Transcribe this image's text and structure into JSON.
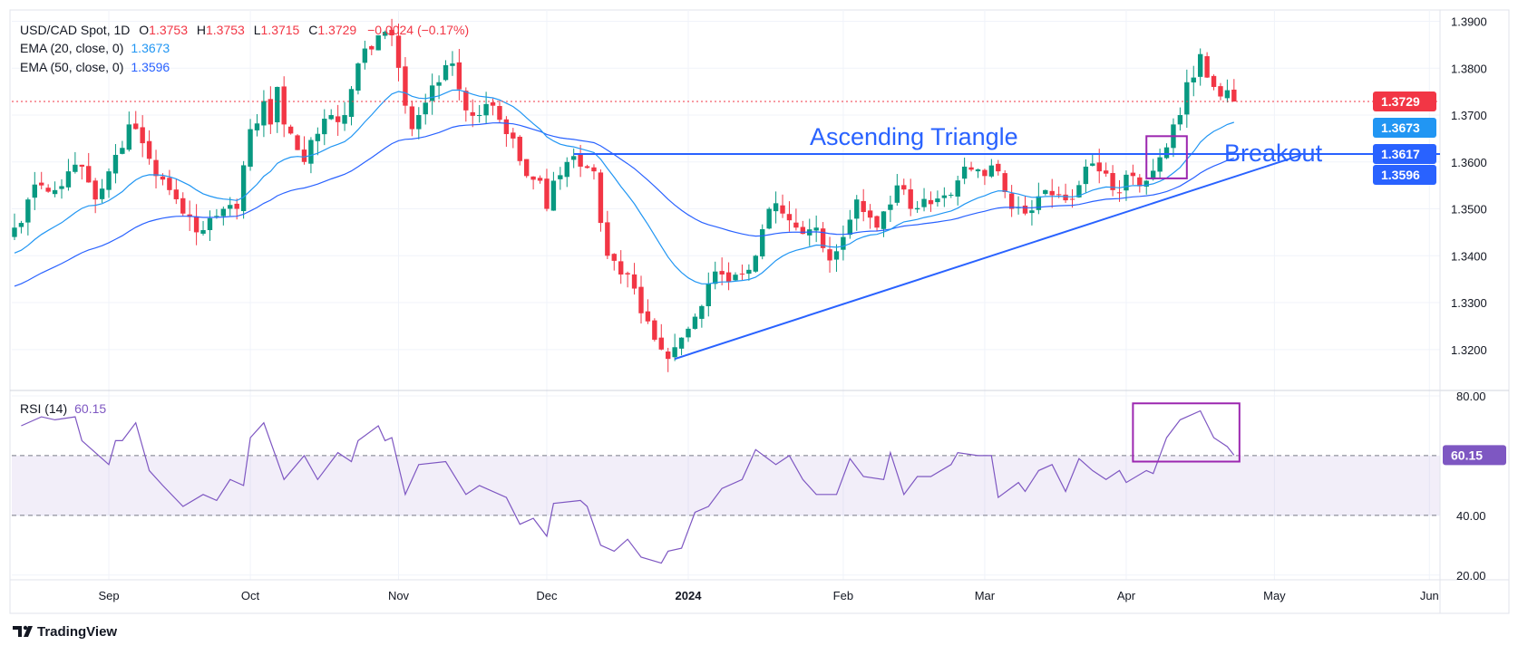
{
  "header": {
    "symbol": "USD/CAD Spot, 1D",
    "open_label": "O",
    "open": "1.3753",
    "high_label": "H",
    "high": "1.3753",
    "low_label": "L",
    "low": "1.3715",
    "close_label": "C",
    "close": "1.3729",
    "change": "−0.0024 (−0.17%)",
    "ema20_label": "EMA (20, close, 0)",
    "ema20_value": "1.3673",
    "ema50_label": "EMA (50, close, 0)",
    "ema50_value": "1.3596",
    "rsi_label": "RSI (14)",
    "rsi_value": "60.15"
  },
  "annotations": {
    "pattern": "Ascending Triangle",
    "breakout": "Breakout"
  },
  "footer": {
    "brand": "TradingView"
  },
  "colors": {
    "up": "#089981",
    "down": "#f23645",
    "ema20": "#2196f3",
    "ema50": "#2962ff",
    "annotation": "#2962ff",
    "rsi": "#7e57c2",
    "box": "#9c27b0",
    "last": "#f23645"
  },
  "chart_data": [
    {
      "type": "candlestick",
      "title": "USD/CAD Spot, 1D",
      "ylim": [
        1.315,
        1.395
      ],
      "y_ticks": [
        "1.3900",
        "1.3800",
        "1.3700",
        "1.3600",
        "1.3500",
        "1.3400",
        "1.3300",
        "1.3200"
      ],
      "x_ticks": [
        {
          "label": "Sep",
          "date": "2023-09-01"
        },
        {
          "label": "Oct",
          "date": "2023-10-02"
        },
        {
          "label": "Nov",
          "date": "2023-11-01"
        },
        {
          "label": "Dec",
          "date": "2023-12-01"
        },
        {
          "label": "2024",
          "date": "2024-01-01"
        },
        {
          "label": "Feb",
          "date": "2024-02-01"
        },
        {
          "label": "Mar",
          "date": "2024-03-01"
        },
        {
          "label": "Apr",
          "date": "2024-04-01"
        },
        {
          "label": "May",
          "date": "2024-05-01"
        },
        {
          "label": "Jun",
          "date": "2024-06-03"
        }
      ],
      "date_range": [
        "2023-08-14",
        "2024-06-05"
      ],
      "close_keypoints": [
        [
          "2023-08-14",
          1.346
        ],
        [
          "2023-08-16",
          1.352
        ],
        [
          "2023-08-18",
          1.355
        ],
        [
          "2023-08-22",
          1.354
        ],
        [
          "2023-08-24",
          1.358
        ],
        [
          "2023-08-28",
          1.359
        ],
        [
          "2023-08-30",
          1.352
        ],
        [
          "2023-09-01",
          1.358
        ],
        [
          "2023-09-05",
          1.363
        ],
        [
          "2023-09-06",
          1.368
        ],
        [
          "2023-09-08",
          1.364
        ],
        [
          "2023-09-12",
          1.357
        ],
        [
          "2023-09-14",
          1.354
        ],
        [
          "2023-09-18",
          1.349
        ],
        [
          "2023-09-20",
          1.345
        ],
        [
          "2023-09-22",
          1.348
        ],
        [
          "2023-09-26",
          1.35
        ],
        [
          "2023-09-28",
          1.35
        ],
        [
          "2023-10-02",
          1.367
        ],
        [
          "2023-10-04",
          1.373
        ],
        [
          "2023-10-05",
          1.368
        ],
        [
          "2023-10-06",
          1.376
        ],
        [
          "2023-10-09",
          1.368
        ],
        [
          "2023-10-12",
          1.36
        ],
        [
          "2023-10-16",
          1.366
        ],
        [
          "2023-10-18",
          1.37
        ],
        [
          "2023-10-20",
          1.37
        ],
        [
          "2023-10-24",
          1.381
        ],
        [
          "2023-10-26",
          1.384
        ],
        [
          "2023-10-27",
          1.387
        ],
        [
          "2023-10-31",
          1.387
        ],
        [
          "2023-11-02",
          1.372
        ],
        [
          "2023-11-03",
          1.367
        ],
        [
          "2023-11-06",
          1.37
        ],
        [
          "2023-11-09",
          1.377
        ],
        [
          "2023-11-13",
          1.381
        ],
        [
          "2023-11-15",
          1.371
        ],
        [
          "2023-11-17",
          1.37
        ],
        [
          "2023-11-21",
          1.372
        ],
        [
          "2023-11-24",
          1.365
        ],
        [
          "2023-11-28",
          1.357
        ],
        [
          "2023-11-30",
          1.356
        ],
        [
          "2023-12-01",
          1.35
        ],
        [
          "2023-12-04",
          1.356
        ],
        [
          "2023-12-06",
          1.36
        ],
        [
          "2023-12-08",
          1.359
        ],
        [
          "2023-12-12",
          1.358
        ],
        [
          "2023-12-13",
          1.347
        ],
        [
          "2023-12-14",
          1.34
        ],
        [
          "2023-12-18",
          1.336
        ],
        [
          "2023-12-20",
          1.333
        ],
        [
          "2023-12-22",
          1.326
        ],
        [
          "2023-12-26",
          1.32
        ],
        [
          "2023-12-27",
          1.318
        ],
        [
          "2024-01-02",
          1.327
        ],
        [
          "2024-01-04",
          1.334
        ],
        [
          "2024-01-08",
          1.336
        ],
        [
          "2024-01-12",
          1.337
        ],
        [
          "2024-01-15",
          1.34
        ],
        [
          "2024-01-17",
          1.35
        ],
        [
          "2024-01-19",
          1.349
        ],
        [
          "2024-01-23",
          1.346
        ],
        [
          "2024-01-26",
          1.346
        ],
        [
          "2024-01-30",
          1.339
        ],
        [
          "2024-02-01",
          1.344
        ],
        [
          "2024-02-05",
          1.352
        ],
        [
          "2024-02-08",
          1.346
        ],
        [
          "2024-02-13",
          1.355
        ],
        [
          "2024-02-15",
          1.35
        ],
        [
          "2024-02-20",
          1.351
        ],
        [
          "2024-02-23",
          1.353
        ],
        [
          "2024-02-27",
          1.359
        ],
        [
          "2024-03-01",
          1.357
        ],
        [
          "2024-03-05",
          1.358
        ],
        [
          "2024-03-07",
          1.35
        ],
        [
          "2024-03-11",
          1.349
        ],
        [
          "2024-03-14",
          1.354
        ],
        [
          "2024-03-18",
          1.353
        ],
        [
          "2024-03-20",
          1.352
        ],
        [
          "2024-03-22",
          1.359
        ],
        [
          "2024-03-26",
          1.358
        ],
        [
          "2024-03-28",
          1.354
        ],
        [
          "2024-04-02",
          1.357
        ],
        [
          "2024-04-04",
          1.356
        ],
        [
          "2024-04-08",
          1.361
        ],
        [
          "2024-04-10",
          1.368
        ],
        [
          "2024-04-11",
          1.37
        ],
        [
          "2024-04-12",
          1.377
        ],
        [
          "2024-04-15",
          1.378
        ],
        [
          "2024-04-16",
          1.383
        ],
        [
          "2024-04-17",
          1.378
        ],
        [
          "2024-04-18",
          1.376
        ],
        [
          "2024-04-22",
          1.3753
        ],
        [
          "2024-04-23",
          1.3729
        ]
      ],
      "ema_seed": {
        "ema20": 1.34,
        "ema50": 1.333
      },
      "last_price": {
        "value": 1.3729,
        "label": "1.3729"
      },
      "price_labels": [
        {
          "label": "1.3673",
          "value": 1.3673,
          "series": "ema20"
        },
        {
          "label": "1.3617",
          "value": 1.3617,
          "series": "resistance"
        },
        {
          "label": "1.3596",
          "value": 1.3596,
          "series": "ema50"
        }
      ],
      "resistance_line": {
        "value": 1.3617,
        "start": "2023-12-07"
      },
      "trendline": [
        [
          "2023-12-28",
          1.318
        ],
        [
          "2024-05-07",
          1.3615
        ]
      ],
      "breakout_box": {
        "start": "2024-04-04",
        "end": "2024-04-12",
        "top": 1.3655,
        "bottom": 1.3565
      }
    },
    {
      "type": "line",
      "title": "RSI (14)",
      "ylim": [
        15,
        85
      ],
      "y_ticks": [
        "80.00",
        "40.00",
        "20.00"
      ],
      "band": [
        40,
        60
      ],
      "current": {
        "value": 60.15,
        "label": "60.15"
      },
      "rsi_box": {
        "start": "2024-04-02",
        "end": "2024-04-23",
        "top": 77.5,
        "bottom": 58
      },
      "points": [
        [
          "2023-08-15",
          70
        ],
        [
          "2023-08-18",
          73
        ],
        [
          "2023-08-22",
          72
        ],
        [
          "2023-08-25",
          73
        ],
        [
          "2023-08-28",
          65
        ],
        [
          "2023-09-01",
          57
        ],
        [
          "2023-09-04",
          65
        ],
        [
          "2023-09-05",
          65
        ],
        [
          "2023-09-07",
          71
        ],
        [
          "2023-09-11",
          55
        ],
        [
          "2023-09-13",
          50
        ],
        [
          "2023-09-18",
          43
        ],
        [
          "2023-09-21",
          47
        ],
        [
          "2023-09-25",
          45
        ],
        [
          "2023-09-27",
          52
        ],
        [
          "2023-09-29",
          50
        ],
        [
          "2023-10-02",
          66
        ],
        [
          "2023-10-04",
          71
        ],
        [
          "2023-10-09",
          52
        ],
        [
          "2023-10-12",
          60
        ],
        [
          "2023-10-16",
          52
        ],
        [
          "2023-10-19",
          61
        ],
        [
          "2023-10-23",
          58
        ],
        [
          "2023-10-24",
          65
        ],
        [
          "2023-10-27",
          70
        ],
        [
          "2023-10-30",
          65
        ],
        [
          "2023-10-31",
          66
        ],
        [
          "2023-11-02",
          47
        ],
        [
          "2023-11-06",
          57
        ],
        [
          "2023-11-10",
          58
        ],
        [
          "2023-11-15",
          47
        ],
        [
          "2023-11-17",
          50
        ],
        [
          "2023-11-23",
          46
        ],
        [
          "2023-11-27",
          37
        ],
        [
          "2023-11-29",
          39
        ],
        [
          "2023-12-01",
          33
        ],
        [
          "2023-12-04",
          44
        ],
        [
          "2023-12-08",
          45
        ],
        [
          "2023-12-11",
          43
        ],
        [
          "2023-12-13",
          30
        ],
        [
          "2023-12-15",
          28
        ],
        [
          "2023-12-19",
          32
        ],
        [
          "2023-12-21",
          26
        ],
        [
          "2023-12-26",
          24
        ],
        [
          "2023-12-27",
          28
        ],
        [
          "2023-12-29",
          29
        ],
        [
          "2024-01-02",
          41
        ],
        [
          "2024-01-04",
          43
        ],
        [
          "2024-01-08",
          49
        ],
        [
          "2024-01-11",
          52
        ],
        [
          "2024-01-15",
          62
        ],
        [
          "2024-01-18",
          57
        ],
        [
          "2024-01-22",
          60
        ],
        [
          "2024-01-24",
          52
        ],
        [
          "2024-01-26",
          47
        ],
        [
          "2024-01-31",
          47
        ],
        [
          "2024-02-02",
          59
        ],
        [
          "2024-02-06",
          53
        ],
        [
          "2024-02-09",
          52
        ],
        [
          "2024-02-12",
          61
        ],
        [
          "2024-02-14",
          47
        ],
        [
          "2024-02-16",
          53
        ],
        [
          "2024-02-20",
          53
        ],
        [
          "2024-02-23",
          57
        ],
        [
          "2024-02-26",
          61
        ],
        [
          "2024-02-29",
          60
        ],
        [
          "2024-03-04",
          60
        ],
        [
          "2024-03-05",
          46
        ],
        [
          "2024-03-08",
          51
        ],
        [
          "2024-03-11",
          48
        ],
        [
          "2024-03-13",
          55
        ],
        [
          "2024-03-15",
          57
        ],
        [
          "2024-03-19",
          48
        ],
        [
          "2024-03-21",
          59
        ],
        [
          "2024-03-25",
          55
        ],
        [
          "2024-03-27",
          52
        ],
        [
          "2024-03-29",
          55
        ],
        [
          "2024-04-01",
          51
        ],
        [
          "2024-04-04",
          55
        ],
        [
          "2024-04-05",
          54
        ],
        [
          "2024-04-09",
          66
        ],
        [
          "2024-04-11",
          72
        ],
        [
          "2024-04-16",
          75
        ],
        [
          "2024-04-18",
          66
        ],
        [
          "2024-04-22",
          63
        ],
        [
          "2024-04-23",
          60.15
        ]
      ]
    }
  ]
}
